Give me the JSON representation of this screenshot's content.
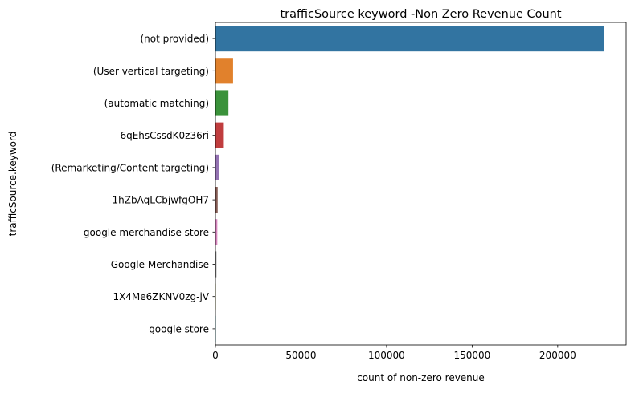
{
  "chart_data": {
    "type": "bar",
    "orientation": "horizontal",
    "title": "trafficSource keyword -Non Zero Revenue Count",
    "xlabel": "count of non-zero revenue",
    "ylabel": "trafficSource.keyword",
    "categories": [
      "(not provided)",
      "(User vertical targeting)",
      "(automatic matching)",
      "6qEhsCssdK0z36ri",
      "(Remarketing/Content targeting)",
      "1hZbAqLCbjwfgOH7",
      "google merchandise store",
      "Google Merchandise",
      "1X4Me6ZKNV0zg-jV",
      "google store"
    ],
    "values": [
      227000,
      10300,
      7600,
      4900,
      2300,
      1300,
      1100,
      600,
      150,
      80
    ],
    "colors": [
      "#3274a1",
      "#e1812c",
      "#3a923a",
      "#c03d3e",
      "#9372b2",
      "#845b53",
      "#d684bd",
      "#7f7f7f",
      "#a9aa35",
      "#2ebdcd"
    ],
    "xlim": [
      0,
      240000
    ],
    "xticks": [
      0,
      50000,
      100000,
      150000,
      200000
    ],
    "xtick_labels": [
      "0",
      "50000",
      "100000",
      "150000",
      "200000"
    ],
    "grid": false,
    "legend": "none"
  }
}
